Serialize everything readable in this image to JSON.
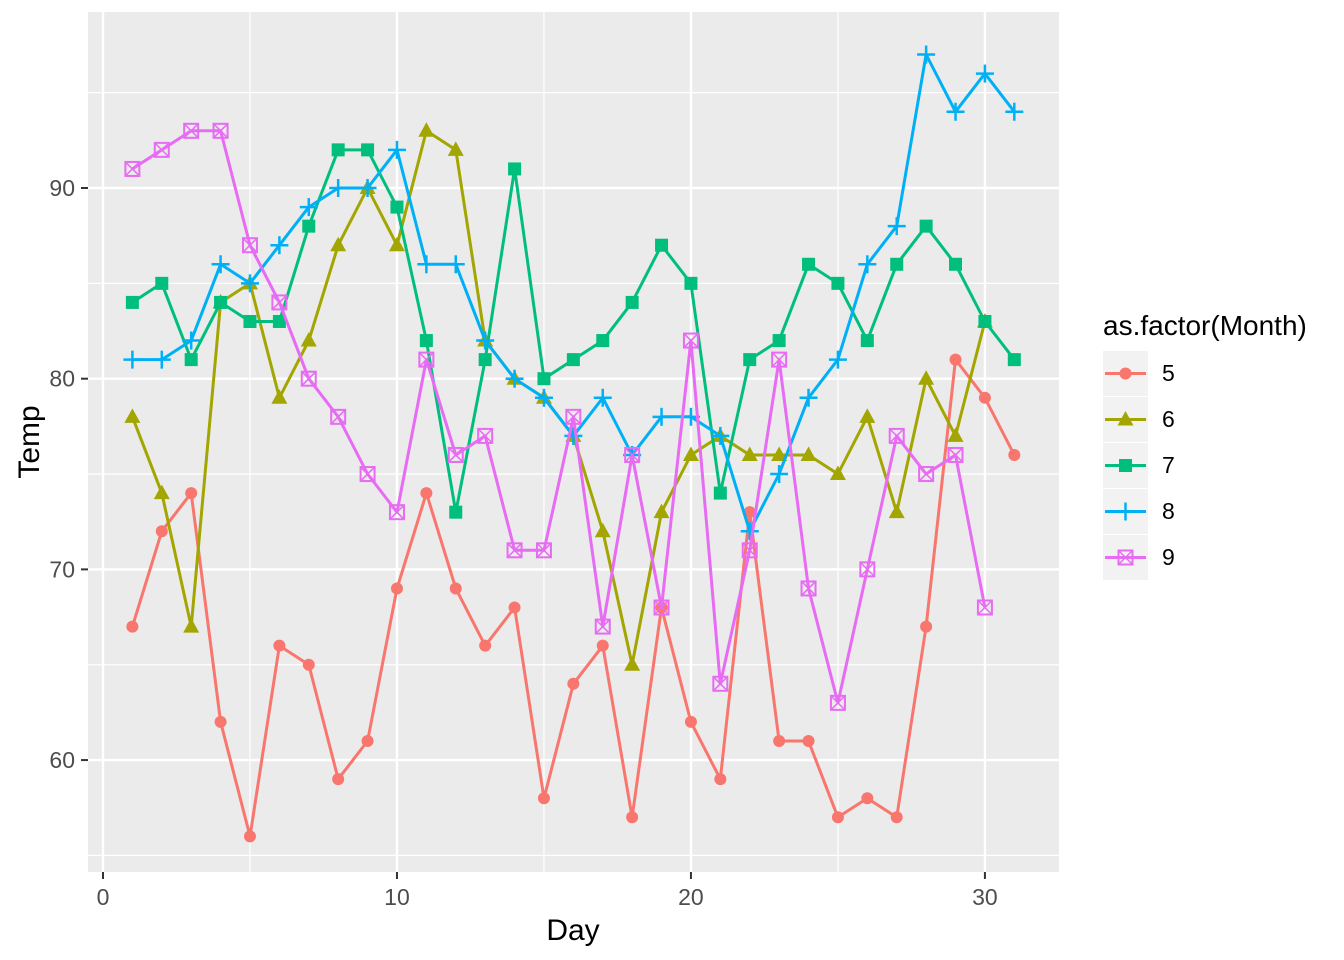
{
  "chart_data": {
    "type": "line",
    "title": "",
    "xlabel": "Day",
    "ylabel": "Temp",
    "legend_title": "as.factor(Month)",
    "legend_position": "right",
    "grid": "on",
    "x_ticks": [
      0,
      10,
      20,
      30
    ],
    "x_minor_ticks": [
      5,
      15,
      25
    ],
    "y_ticks": [
      60,
      70,
      80,
      90
    ],
    "y_minor_ticks": [
      55,
      65,
      75,
      85,
      95
    ],
    "xlim": [
      -0.51,
      32.52
    ],
    "ylim": [
      54.13,
      99.23
    ],
    "x_start": 1,
    "colors": {
      "panel_bg": "#EBEBEB",
      "grid": "#FFFFFF",
      "tick_mark": "#333333",
      "tick_label": "#4D4D4D",
      "axis_title": "#000000",
      "legend_key_bg": "#F2F2F2"
    },
    "series": [
      {
        "name": "5",
        "color": "#F8766D",
        "shape": "circle",
        "values": [
          67,
          72,
          74,
          62,
          56,
          66,
          65,
          59,
          61,
          69,
          74,
          69,
          66,
          68,
          58,
          64,
          66,
          57,
          68,
          62,
          59,
          73,
          61,
          61,
          57,
          58,
          57,
          67,
          81,
          79,
          76
        ]
      },
      {
        "name": "6",
        "color": "#A3A500",
        "shape": "triangle",
        "values": [
          78,
          74,
          67,
          84,
          85,
          79,
          82,
          87,
          90,
          87,
          93,
          92,
          82,
          80,
          79,
          77,
          72,
          65,
          73,
          76,
          77,
          76,
          76,
          76,
          75,
          78,
          73,
          80,
          77,
          83
        ]
      },
      {
        "name": "7",
        "color": "#00BF7D",
        "shape": "square",
        "values": [
          84,
          85,
          81,
          84,
          83,
          83,
          88,
          92,
          92,
          89,
          82,
          73,
          81,
          91,
          80,
          81,
          82,
          84,
          87,
          85,
          74,
          81,
          82,
          86,
          85,
          82,
          86,
          88,
          86,
          83,
          81
        ]
      },
      {
        "name": "8",
        "color": "#00B0F6",
        "shape": "plus",
        "values": [
          81,
          81,
          82,
          86,
          85,
          87,
          89,
          90,
          90,
          92,
          86,
          86,
          82,
          80,
          79,
          77,
          79,
          76,
          78,
          78,
          77,
          72,
          75,
          79,
          81,
          86,
          88,
          97,
          94,
          96,
          94
        ]
      },
      {
        "name": "9",
        "color": "#E76BF3",
        "shape": "square-cross",
        "values": [
          91,
          92,
          93,
          93,
          87,
          84,
          80,
          78,
          75,
          73,
          81,
          76,
          77,
          71,
          71,
          78,
          67,
          76,
          68,
          82,
          64,
          71,
          81,
          69,
          63,
          70,
          77,
          75,
          76,
          68
        ]
      }
    ]
  }
}
